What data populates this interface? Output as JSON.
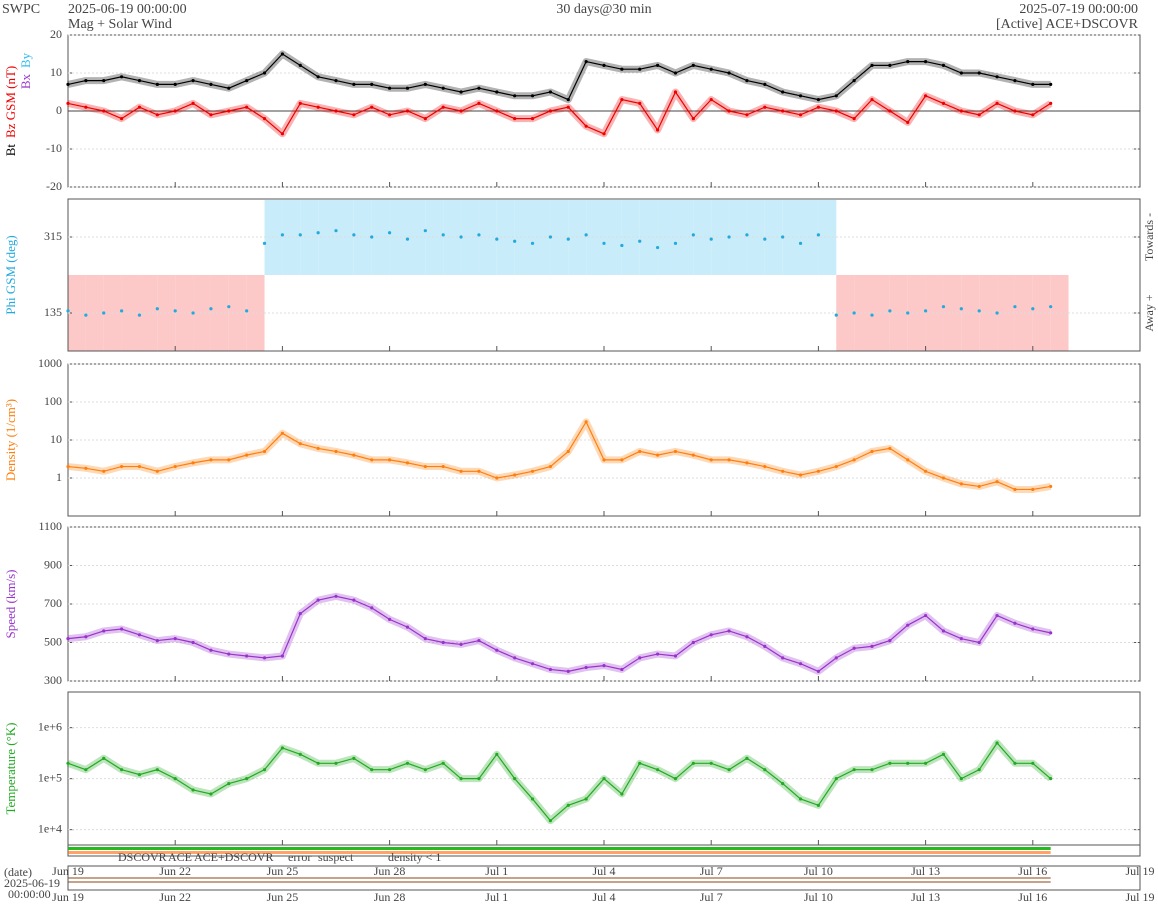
{
  "header": {
    "org": "SWPC",
    "start": "2025-06-19 00:00:00",
    "subtitle": "Mag + Solar Wind",
    "span": "30 days@30 min",
    "end": "2025-07-19 00:00:00",
    "source": "[Active] ACE+DSCOVR"
  },
  "time": {
    "x": [
      "2025-06-19T00:00",
      "2025-06-19T12:00",
      "2025-06-20T00:00",
      "2025-06-20T12:00",
      "2025-06-21T00:00",
      "2025-06-21T12:00",
      "2025-06-22T00:00",
      "2025-06-22T12:00",
      "2025-06-23T00:00",
      "2025-06-23T12:00",
      "2025-06-24T00:00",
      "2025-06-24T12:00",
      "2025-06-25T00:00",
      "2025-06-25T12:00",
      "2025-06-26T00:00",
      "2025-06-26T12:00",
      "2025-06-27T00:00",
      "2025-06-27T12:00",
      "2025-06-28T00:00",
      "2025-06-28T12:00",
      "2025-06-29T00:00",
      "2025-06-29T12:00",
      "2025-06-30T00:00",
      "2025-06-30T12:00",
      "2025-07-01T00:00",
      "2025-07-01T12:00",
      "2025-07-02T00:00",
      "2025-07-02T12:00",
      "2025-07-03T00:00",
      "2025-07-03T12:00",
      "2025-07-04T00:00",
      "2025-07-04T12:00",
      "2025-07-05T00:00",
      "2025-07-05T12:00",
      "2025-07-06T00:00",
      "2025-07-06T12:00",
      "2025-07-07T00:00",
      "2025-07-07T12:00",
      "2025-07-08T00:00",
      "2025-07-08T12:00",
      "2025-07-09T00:00",
      "2025-07-09T12:00",
      "2025-07-10T00:00",
      "2025-07-10T12:00",
      "2025-07-11T00:00",
      "2025-07-11T12:00",
      "2025-07-12T00:00",
      "2025-07-12T12:00",
      "2025-07-13T00:00",
      "2025-07-13T12:00",
      "2025-07-14T00:00",
      "2025-07-14T12:00",
      "2025-07-15T00:00",
      "2025-07-15T12:00",
      "2025-07-16T00:00",
      "2025-07-16T12:00"
    ],
    "xlim": [
      "2025-06-19T00:00",
      "2025-07-19T00:00"
    ],
    "xticks": [
      {
        "value": "2025-06-19T00:00",
        "label": "Jun 19"
      },
      {
        "value": "2025-06-22T00:00",
        "label": "Jun 22"
      },
      {
        "value": "2025-06-25T00:00",
        "label": "Jun 25"
      },
      {
        "value": "2025-06-28T00:00",
        "label": "Jun 28"
      },
      {
        "value": "2025-07-01T00:00",
        "label": "Jul 1"
      },
      {
        "value": "2025-07-04T00:00",
        "label": "Jul 4"
      },
      {
        "value": "2025-07-07T00:00",
        "label": "Jul 7"
      },
      {
        "value": "2025-07-10T00:00",
        "label": "Jul 10"
      },
      {
        "value": "2025-07-13T00:00",
        "label": "Jul 13"
      },
      {
        "value": "2025-07-16T00:00",
        "label": "Jul 16"
      },
      {
        "value": "2025-07-19T00:00",
        "label": "Jul 19"
      }
    ]
  },
  "chart_data": [
    {
      "type": "line",
      "ylim": [
        -20,
        20
      ],
      "yticks": [
        -20,
        -10,
        0,
        10,
        20
      ],
      "grid": true,
      "series": [
        {
          "name": "Bt",
          "color": "#000000",
          "values": [
            7,
            8,
            8,
            9,
            8,
            7,
            7,
            8,
            7,
            6,
            8,
            10,
            15,
            12,
            9,
            8,
            7,
            7,
            6,
            6,
            7,
            6,
            5,
            6,
            5,
            4,
            4,
            5,
            3,
            13,
            12,
            11,
            11,
            12,
            10,
            12,
            11,
            10,
            8,
            7,
            5,
            4,
            3,
            4,
            8,
            12,
            12,
            13,
            13,
            12,
            10,
            10,
            9,
            8,
            7,
            7
          ]
        },
        {
          "name": "Bz GSM (nT)",
          "color": "#ee0000",
          "values": [
            2,
            1,
            0,
            -2,
            1,
            -1,
            0,
            2,
            -1,
            0,
            1,
            -2,
            -6,
            2,
            1,
            0,
            -1,
            1,
            -1,
            0,
            -2,
            1,
            0,
            2,
            0,
            -2,
            -2,
            0,
            1,
            -4,
            -6,
            3,
            2,
            -5,
            5,
            -2,
            3,
            0,
            -1,
            1,
            0,
            -1,
            1,
            0,
            -2,
            3,
            0,
            -3,
            4,
            2,
            0,
            -1,
            2,
            0,
            -1,
            2
          ]
        }
      ],
      "extra_labels": [
        {
          "text": "Bx",
          "color": "#9933cc"
        },
        {
          "text": "By",
          "color": "#33bbee"
        }
      ]
    },
    {
      "type": "scatter",
      "ylim": [
        45,
        405
      ],
      "yticks": [
        135,
        315
      ],
      "grid": true,
      "sector_colors": [
        "#fcc8c8",
        "#c8ecfa"
      ],
      "series": [
        {
          "name": "Phi GSM (deg)",
          "color": "#22aadd",
          "values": [
            140,
            130,
            135,
            140,
            130,
            145,
            140,
            135,
            145,
            150,
            140,
            300,
            320,
            320,
            325,
            330,
            320,
            315,
            325,
            310,
            330,
            320,
            315,
            320,
            310,
            305,
            300,
            315,
            310,
            320,
            300,
            295,
            305,
            290,
            300,
            320,
            310,
            315,
            320,
            310,
            315,
            300,
            320,
            130,
            135,
            130,
            140,
            135,
            140,
            150,
            145,
            140,
            135,
            150,
            145,
            150
          ]
        }
      ],
      "side_labels": [
        "Towards -",
        "Away +"
      ]
    },
    {
      "type": "line",
      "log": true,
      "ylim": [
        0.1,
        1000
      ],
      "yticks": [
        1,
        10,
        100,
        1000
      ],
      "grid": true,
      "series": [
        {
          "name": "Density (1/cm³)",
          "color": "#ff7f0e",
          "values": [
            2,
            1.8,
            1.5,
            2,
            2,
            1.5,
            2,
            2.5,
            3,
            3,
            4,
            5,
            15,
            8,
            6,
            5,
            4,
            3,
            3,
            2.5,
            2,
            2,
            1.5,
            1.5,
            1,
            1.2,
            1.5,
            2,
            5,
            30,
            3,
            3,
            5,
            4,
            5,
            4,
            3,
            3,
            2.5,
            2,
            1.5,
            1.2,
            1.5,
            2,
            3,
            5,
            6,
            3,
            1.5,
            1,
            0.7,
            0.6,
            0.8,
            0.5,
            0.5,
            0.6
          ]
        }
      ]
    },
    {
      "type": "line",
      "ylim": [
        300,
        1100
      ],
      "yticks": [
        300,
        500,
        700,
        900,
        1100
      ],
      "grid": true,
      "series": [
        {
          "name": "Speed (km/s)",
          "color": "#9933cc",
          "values": [
            520,
            530,
            560,
            570,
            540,
            510,
            520,
            500,
            460,
            440,
            430,
            420,
            430,
            650,
            720,
            740,
            720,
            680,
            620,
            580,
            520,
            500,
            490,
            510,
            460,
            420,
            390,
            360,
            350,
            370,
            380,
            360,
            420,
            440,
            430,
            500,
            540,
            560,
            530,
            480,
            420,
            390,
            350,
            420,
            470,
            480,
            510,
            590,
            640,
            560,
            520,
            500,
            640,
            600,
            570,
            550
          ]
        }
      ]
    },
    {
      "type": "line",
      "log": true,
      "ylim": [
        5000,
        5000000
      ],
      "yticks": [
        {
          "value": 10000,
          "label": "1e+4"
        },
        {
          "value": 100000,
          "label": "1e+5"
        },
        {
          "value": 1000000,
          "label": "1e+6"
        }
      ],
      "grid": true,
      "series": [
        {
          "name": "Temperature (°K)",
          "color": "#22aa22",
          "values": [
            200000,
            150000,
            250000,
            150000,
            120000,
            150000,
            100000,
            60000,
            50000,
            80000,
            100000,
            150000,
            400000,
            300000,
            200000,
            200000,
            250000,
            150000,
            150000,
            200000,
            150000,
            200000,
            100000,
            100000,
            300000,
            100000,
            40000,
            15000,
            30000,
            40000,
            100000,
            50000,
            200000,
            150000,
            100000,
            200000,
            200000,
            150000,
            250000,
            150000,
            80000,
            40000,
            30000,
            100000,
            150000,
            150000,
            200000,
            200000,
            200000,
            300000,
            100000,
            150000,
            500000,
            200000,
            200000,
            100000
          ]
        }
      ]
    }
  ],
  "source_legend": [
    {
      "name": "DSCOVR",
      "color": "#0000cc"
    },
    {
      "name": "ACE",
      "color": "#22bb22"
    },
    {
      "name": "ACE+DSCOVR",
      "color": "#ee22ee"
    },
    {
      "name": "error",
      "color": "#ee0000"
    },
    {
      "name": "suspect",
      "color": "#ddaa00"
    },
    {
      "name": "density < 1",
      "color": "#ff6600"
    }
  ],
  "date_axis": {
    "label": "(date)",
    "date": "2025-06-19",
    "time": "00:00:00"
  }
}
